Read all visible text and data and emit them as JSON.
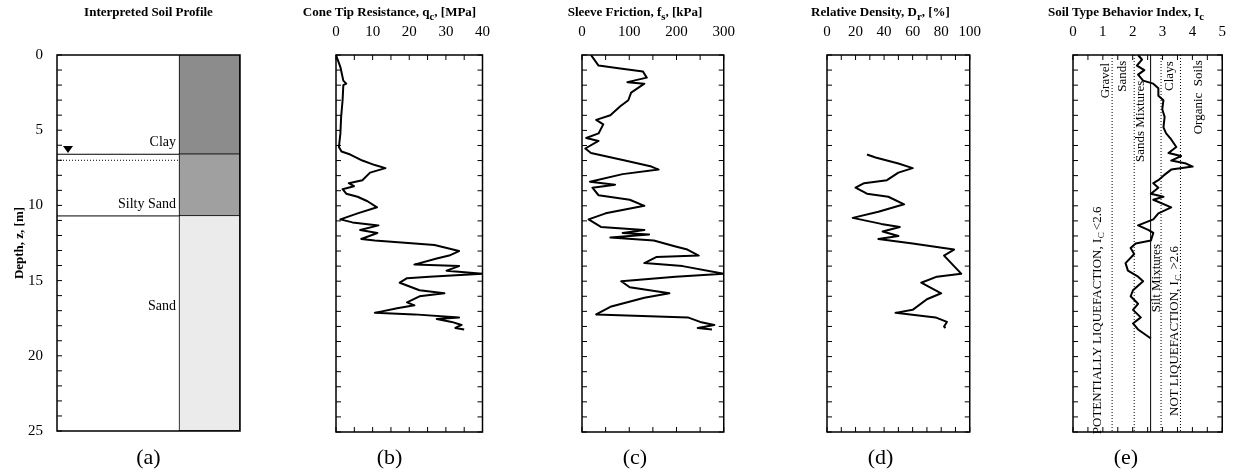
{
  "chart_data": [
    {
      "type": "bar",
      "title": "Interpreted Soil Profile",
      "ylabel": "Depth, z, [m]",
      "ylim": [
        25,
        0
      ],
      "stacked": true,
      "categories": [
        null,
        null,
        null
      ],
      "yticks": [
        0,
        {
          "value": 1,
          "label": null
        },
        {
          "value": 2,
          "label": null
        },
        {
          "value": 3,
          "label": null
        },
        {
          "value": 4,
          "label": null
        },
        5,
        {
          "value": 6,
          "label": null
        },
        {
          "value": 7,
          "label": null
        },
        {
          "value": 8,
          "label": null
        },
        {
          "value": 9,
          "label": null
        },
        10,
        {
          "value": 11,
          "label": null
        },
        {
          "value": 12,
          "label": null
        },
        {
          "value": 13,
          "label": null
        },
        {
          "value": 14,
          "label": null
        },
        15,
        {
          "value": 16,
          "label": null
        },
        {
          "value": 17,
          "label": null
        },
        {
          "value": 18,
          "label": null
        },
        {
          "value": 19,
          "label": null
        },
        20,
        {
          "value": 21,
          "label": null
        },
        {
          "value": 22,
          "label": null
        },
        {
          "value": 23,
          "label": null
        },
        {
          "value": 24,
          "label": null
        },
        25
      ],
      "tick_labels": "y",
      "series": [
        {
          "name": "Clay",
          "color": "#8c8c8c",
          "values": [
            null,
            null,
            6.6
          ]
        },
        {
          "name": "Silty Sand",
          "color": "#a0a0a0",
          "values": [
            null,
            null,
            4.1
          ]
        },
        {
          "name": "Sand",
          "color": "#ebebeb",
          "values": [
            null,
            null,
            14.3
          ]
        }
      ],
      "ref_lines": [
        {
          "axis": "y",
          "value": 6.6,
          "line_style": "solid"
        },
        {
          "axis": "y",
          "value": 7.0,
          "line_style": "dotted"
        },
        {
          "axis": "y",
          "value": 10.7,
          "line_style": "solid"
        }
      ],
      "annotations": [
        "(a)"
      ]
    },
    {
      "type": "line",
      "title": "Cone Tip Resistance, q$_{c}$, [MPa]",
      "xlim": [
        0,
        40
      ],
      "ylim": [
        25,
        0
      ],
      "tick_labels": "x",
      "xticks": [
        0,
        {
          "value": 5,
          "label": null
        },
        10,
        {
          "value": 15,
          "label": null
        },
        20,
        {
          "value": 25,
          "label": null
        },
        30,
        {
          "value": 35,
          "label": null
        },
        40
      ],
      "yticks": [
        0,
        {
          "value": 1,
          "label": null
        },
        {
          "value": 2,
          "label": null
        },
        {
          "value": 3,
          "label": null
        },
        {
          "value": 4,
          "label": null
        },
        5,
        {
          "value": 6,
          "label": null
        },
        {
          "value": 7,
          "label": null
        },
        {
          "value": 8,
          "label": null
        },
        {
          "value": 9,
          "label": null
        },
        10,
        {
          "value": 11,
          "label": null
        },
        {
          "value": 12,
          "label": null
        },
        {
          "value": 13,
          "label": null
        },
        {
          "value": 14,
          "label": null
        },
        15,
        {
          "value": 16,
          "label": null
        },
        {
          "value": 17,
          "label": null
        },
        {
          "value": 18,
          "label": null
        },
        {
          "value": 19,
          "label": null
        },
        20,
        {
          "value": 21,
          "label": null
        },
        {
          "value": 22,
          "label": null
        },
        {
          "value": 23,
          "label": null
        },
        {
          "value": 24,
          "label": null
        },
        25
      ],
      "series": [
        {
          "color": "#000000",
          "x": [
            0,
            1.2,
            2.0,
            2.8,
            2.0,
            1.8,
            1.4,
            1.2,
            0.8,
            1.5,
            3.9,
            7.2,
            10.6,
            13.5,
            9.3,
            7.2,
            3.5,
            4.9,
            1.8,
            2.8,
            5.9,
            8.6,
            11.2,
            5.9,
            1.2,
            4.5,
            11.6,
            6.6,
            11.3,
            6.9,
            10.6,
            26.9,
            33.6,
            30.9,
            27.5,
            21.4,
            33.6,
            30.2,
            40,
            25.5,
            19.4,
            17.4,
            22.8,
            29.6,
            22.8,
            19.4,
            21.4,
            16.7,
            10.6,
            21.4,
            33.6,
            27.5,
            31.6,
            34.3,
            32.6,
            35
          ],
          "values": [
            0,
            0.8,
            1.7,
            1.9,
            2.0,
            3.0,
            4.1,
            5.2,
            6.1,
            6.4,
            6.6,
            7.0,
            7.3,
            7.5,
            7.8,
            8.3,
            8.5,
            8.7,
            8.9,
            9.2,
            9.4,
            9.7,
            10.1,
            10.5,
            10.9,
            11.1,
            11.3,
            11.6,
            11.8,
            12.2,
            12.3,
            12.6,
            13.0,
            13.3,
            13.5,
            13.9,
            14.0,
            14.3,
            14.5,
            14.7,
            14.8,
            15.1,
            15.6,
            15.8,
            16.0,
            16.4,
            16.6,
            16.8,
            17.1,
            17.2,
            17.4,
            17.5,
            17.7,
            17.9,
            18.1,
            18.2
          ]
        }
      ],
      "annotations": [
        "(b)"
      ]
    },
    {
      "type": "line",
      "title": "Sleeve Friction, f$_{s}$, [kPa]",
      "xlim": [
        0,
        300
      ],
      "ylim": [
        25,
        0
      ],
      "tick_labels": "x",
      "xticks": [
        0,
        {
          "value": 50,
          "label": null
        },
        100,
        {
          "value": 150,
          "label": null
        },
        200,
        {
          "value": 250,
          "label": null
        },
        300
      ],
      "yticks": [
        0,
        {
          "value": 1,
          "label": null
        },
        {
          "value": 2,
          "label": null
        },
        {
          "value": 3,
          "label": null
        },
        {
          "value": 4,
          "label": null
        },
        5,
        {
          "value": 6,
          "label": null
        },
        {
          "value": 7,
          "label": null
        },
        {
          "value": 8,
          "label": null
        },
        {
          "value": 9,
          "label": null
        },
        10,
        {
          "value": 11,
          "label": null
        },
        {
          "value": 12,
          "label": null
        },
        {
          "value": 13,
          "label": null
        },
        {
          "value": 14,
          "label": null
        },
        15,
        {
          "value": 16,
          "label": null
        },
        {
          "value": 17,
          "label": null
        },
        {
          "value": 18,
          "label": null
        },
        {
          "value": 19,
          "label": null
        },
        20,
        {
          "value": 21,
          "label": null
        },
        {
          "value": 22,
          "label": null
        },
        {
          "value": 23,
          "label": null
        },
        {
          "value": 24,
          "label": null
        },
        25
      ],
      "series": [
        {
          "color": "#000000",
          "x": [
            19,
            35,
            81,
            129,
            137,
            96,
            132,
            104,
            98,
            81,
            60,
            30,
            45,
            35,
            9,
            35,
            7,
            19,
            91,
            147,
            162,
            86,
            17,
            70,
            22,
            35,
            101,
            132,
            50,
            14,
            40,
            132,
            86,
            142,
            60,
            152,
            198,
            223,
            247,
            157,
            132,
            213,
            300,
            198,
            83,
            101,
            185,
            132,
            60,
            30,
            224,
            250,
            280,
            245,
            275
          ],
          "values": [
            0,
            0.7,
            0.9,
            1.1,
            1.5,
            1.8,
            1.9,
            2.5,
            3.0,
            3.4,
            4.0,
            4.3,
            4.6,
            5.2,
            5.5,
            5.7,
            6.2,
            6.5,
            7.0,
            7.4,
            7.6,
            7.9,
            8.4,
            8.6,
            8.8,
            9.3,
            9.6,
            10.0,
            10.5,
            10.9,
            11.4,
            11.6,
            11.8,
            11.9,
            12.1,
            12.3,
            12.7,
            12.9,
            13.3,
            13.4,
            13.8,
            14.0,
            14.5,
            14.7,
            15.0,
            15.4,
            15.8,
            16.1,
            16.7,
            17.2,
            17.4,
            17.7,
            17.9,
            18.1,
            18.2
          ]
        }
      ],
      "annotations": [
        "(c)"
      ]
    },
    {
      "type": "line",
      "title": "Relative Density, D$_{r}$, [%]",
      "xlim": [
        0,
        100
      ],
      "ylim": [
        25,
        0
      ],
      "tick_labels": "x",
      "xticks": [
        0,
        {
          "value": 10,
          "label": null
        },
        20,
        {
          "value": 30,
          "label": null
        },
        40,
        {
          "value": 50,
          "label": null
        },
        60,
        {
          "value": 70,
          "label": null
        },
        80,
        {
          "value": 90,
          "label": null
        },
        100
      ],
      "yticks": [
        0,
        {
          "value": 1,
          "label": null
        },
        {
          "value": 2,
          "label": null
        },
        {
          "value": 3,
          "label": null
        },
        {
          "value": 4,
          "label": null
        },
        5,
        {
          "value": 6,
          "label": null
        },
        {
          "value": 7,
          "label": null
        },
        {
          "value": 8,
          "label": null
        },
        {
          "value": 9,
          "label": null
        },
        10,
        {
          "value": 11,
          "label": null
        },
        {
          "value": 12,
          "label": null
        },
        {
          "value": 13,
          "label": null
        },
        {
          "value": 14,
          "label": null
        },
        15,
        {
          "value": 16,
          "label": null
        },
        {
          "value": 17,
          "label": null
        },
        {
          "value": 18,
          "label": null
        },
        {
          "value": 19,
          "label": null
        },
        20,
        {
          "value": 21,
          "label": null
        },
        {
          "value": 22,
          "label": null
        },
        {
          "value": 23,
          "label": null
        },
        {
          "value": 24,
          "label": null
        },
        25
      ],
      "series": [
        {
          "color": "#000000",
          "x": [
            28,
            34,
            50,
            60,
            50,
            42,
            26,
            20,
            28,
            43,
            54,
            36,
            18,
            38,
            51,
            39,
            50,
            36,
            60,
            89,
            82,
            94,
            77,
            66,
            80,
            70,
            60,
            48,
            76,
            84,
            82,
            83
          ],
          "values": [
            6.6,
            6.8,
            7.2,
            7.5,
            7.8,
            8.3,
            8.5,
            8.8,
            9.2,
            9.4,
            9.9,
            10.4,
            10.8,
            11.2,
            11.4,
            11.7,
            12.0,
            12.2,
            12.5,
            12.9,
            13.3,
            14.5,
            14.7,
            15.1,
            15.8,
            16.2,
            16.9,
            17.1,
            17.4,
            17.7,
            18.0,
            18.1
          ]
        }
      ],
      "annotations": [
        "(d)"
      ]
    },
    {
      "type": "line",
      "title": "Soil Type Behavior Index, I$_{c}$",
      "xlim": [
        0,
        5
      ],
      "ylim": [
        25,
        0
      ],
      "tick_labels": "x",
      "xticks": [
        0,
        {
          "value": 0.5,
          "label": null
        },
        1,
        {
          "value": 1.5,
          "label": null
        },
        2,
        {
          "value": 2.5,
          "label": null
        },
        3,
        {
          "value": 3.5,
          "label": null
        },
        4,
        {
          "value": 4.5,
          "label": null
        },
        5
      ],
      "yticks": [
        0,
        {
          "value": 1,
          "label": null
        },
        {
          "value": 2,
          "label": null
        },
        {
          "value": 3,
          "label": null
        },
        {
          "value": 4,
          "label": null
        },
        5,
        {
          "value": 6,
          "label": null
        },
        {
          "value": 7,
          "label": null
        },
        {
          "value": 8,
          "label": null
        },
        {
          "value": 9,
          "label": null
        },
        10,
        {
          "value": 11,
          "label": null
        },
        {
          "value": 12,
          "label": null
        },
        {
          "value": 13,
          "label": null
        },
        {
          "value": 14,
          "label": null
        },
        15,
        {
          "value": 16,
          "label": null
        },
        {
          "value": 17,
          "label": null
        },
        {
          "value": 18,
          "label": null
        },
        {
          "value": 19,
          "label": null
        },
        20,
        {
          "value": 21,
          "label": null
        },
        {
          "value": 22,
          "label": null
        },
        {
          "value": 23,
          "label": null
        },
        {
          "value": 24,
          "label": null
        },
        25
      ],
      "ref_lines": [
        {
          "axis": "x",
          "value": 1.31,
          "line_style": "dotted"
        },
        {
          "axis": "x",
          "value": 2.05,
          "line_style": "dotted"
        },
        {
          "axis": "x",
          "value": 2.6,
          "line_style": "solid"
        },
        {
          "axis": "x",
          "value": 2.95,
          "line_style": "dotted"
        },
        {
          "axis": "x",
          "value": 3.6,
          "line_style": "dotted"
        }
      ],
      "series": [
        {
          "color": "#000000",
          "x": [
            2.18,
            2.31,
            2.14,
            2.39,
            2.18,
            2.35,
            2.69,
            2.86,
            2.86,
            3.03,
            2.99,
            3.07,
            3.03,
            3.12,
            3.29,
            3.46,
            3.2,
            3.62,
            3.29,
            3.79,
            4.01,
            3.29,
            3.03,
            2.86,
            2.69,
            2.86,
            2.61,
            3.03,
            2.69,
            3.29,
            2.86,
            2.69,
            2.18,
            2.52,
            2.69,
            2.61,
            2.1,
            1.93,
            2.05,
            1.76,
            1.84,
            2.18,
            2.35,
            2.01,
            1.93,
            2.18,
            2.01,
            2.27,
            2.01,
            2.18,
            2.61
          ],
          "values": [
            0,
            0.3,
            0.7,
            1.0,
            1.3,
            1.7,
            1.9,
            2.2,
            2.7,
            3.0,
            3.6,
            4.1,
            4.8,
            5.2,
            5.6,
            6.1,
            6.5,
            6.7,
            7.0,
            7.2,
            7.4,
            7.6,
            8.0,
            8.3,
            8.5,
            8.8,
            9.2,
            9.4,
            9.6,
            10.1,
            10.5,
            10.9,
            11.3,
            11.6,
            11.8,
            12.3,
            12.5,
            12.8,
            13.2,
            13.8,
            14.3,
            14.7,
            15.0,
            15.6,
            16.0,
            16.5,
            16.9,
            17.4,
            17.8,
            18.2,
            18.8
          ]
        }
      ],
      "annotations": [
        "Gravel",
        "Sands",
        "Sands Mixtures",
        "Silt Mixtures",
        "Clays",
        "Organic  Soils",
        "POTENTIALLY LIQUEFACTION, I$_{C}$<2.6",
        "NOT LIQUEFACTION, I$_{C}$ >2.6",
        "(e)"
      ]
    }
  ]
}
